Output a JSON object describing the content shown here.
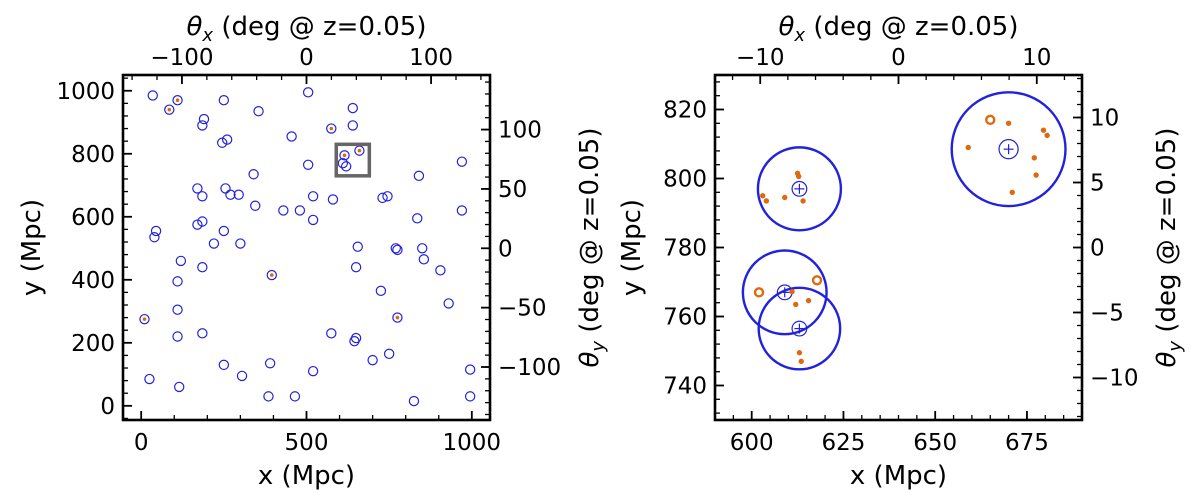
{
  "colors": {
    "halo": "#2222dd",
    "galaxy": "#dd6a10",
    "box": "#666666",
    "axis": "#000000"
  },
  "chart_data": [
    {
      "type": "scatter",
      "xlabel": "x (Mpc)",
      "ylabel": "y (Mpc)",
      "top_label": {
        "prefix": "θ",
        "sub": "x",
        "rest": " (deg @ z=0.05)"
      },
      "right_label": {
        "prefix": "θ",
        "sub": "y",
        "rest": " (deg @ z=0.05)"
      },
      "xlim": [
        -55,
        1055
      ],
      "ylim": [
        -45,
        1050
      ],
      "xticks": [
        0,
        500,
        1000
      ],
      "yticks": [
        0,
        200,
        400,
        600,
        800,
        1000
      ],
      "xtick_labels": [
        "0",
        "500",
        "1000"
      ],
      "ytick_labels": [
        "0",
        "200",
        "400",
        "600",
        "800",
        "1000"
      ],
      "top_ticks": [
        -100,
        0,
        100
      ],
      "top_tick_labels": [
        "−100",
        "0",
        "100"
      ],
      "right_ticks": [
        -100,
        -50,
        0,
        50,
        100
      ],
      "right_tick_labels": [
        "−100",
        "−50",
        "0",
        "50",
        "100"
      ],
      "deg_per_mpc": 0.2654,
      "deg_center": [
        500,
        500
      ],
      "zoom_box": {
        "x": [
          590,
          690
        ],
        "y": [
          730,
          830
        ]
      },
      "halos": [
        [
          35,
          985
        ],
        [
          110,
          970
        ],
        [
          85,
          940
        ],
        [
          45,
          555
        ],
        [
          40,
          535
        ],
        [
          190,
          910
        ],
        [
          185,
          890
        ],
        [
          250,
          970
        ],
        [
          260,
          845
        ],
        [
          245,
          835
        ],
        [
          355,
          935
        ],
        [
          455,
          855
        ],
        [
          505,
          995
        ],
        [
          575,
          880
        ],
        [
          640,
          945
        ],
        [
          640,
          890
        ],
        [
          660,
          810
        ],
        [
          615,
          795
        ],
        [
          610,
          770
        ],
        [
          620,
          760
        ],
        [
          505,
          765
        ],
        [
          170,
          690
        ],
        [
          185,
          665
        ],
        [
          255,
          690
        ],
        [
          270,
          670
        ],
        [
          295,
          670
        ],
        [
          340,
          735
        ],
        [
          345,
          635
        ],
        [
          430,
          620
        ],
        [
          480,
          620
        ],
        [
          520,
          665
        ],
        [
          580,
          655
        ],
        [
          520,
          590
        ],
        [
          185,
          585
        ],
        [
          170,
          575
        ],
        [
          250,
          555
        ],
        [
          220,
          515
        ],
        [
          300,
          515
        ],
        [
          120,
          460
        ],
        [
          185,
          440
        ],
        [
          110,
          395
        ],
        [
          395,
          415
        ],
        [
          655,
          505
        ],
        [
          650,
          440
        ],
        [
          770,
          500
        ],
        [
          775,
          495
        ],
        [
          745,
          665
        ],
        [
          730,
          660
        ],
        [
          840,
          730
        ],
        [
          835,
          595
        ],
        [
          850,
          500
        ],
        [
          855,
          465
        ],
        [
          905,
          430
        ],
        [
          970,
          775
        ],
        [
          970,
          620
        ],
        [
          930,
          325
        ],
        [
          725,
          365
        ],
        [
          10,
          275
        ],
        [
          110,
          305
        ],
        [
          775,
          280
        ],
        [
          110,
          220
        ],
        [
          185,
          230
        ],
        [
          575,
          230
        ],
        [
          650,
          215
        ],
        [
          645,
          205
        ],
        [
          750,
          165
        ],
        [
          700,
          145
        ],
        [
          250,
          130
        ],
        [
          390,
          135
        ],
        [
          520,
          110
        ],
        [
          995,
          115
        ],
        [
          25,
          85
        ],
        [
          115,
          60
        ],
        [
          305,
          95
        ],
        [
          385,
          30
        ],
        [
          465,
          30
        ],
        [
          825,
          15
        ],
        [
          995,
          30
        ]
      ],
      "halo_galaxies": [
        [
          10,
          275
        ],
        [
          110,
          970
        ],
        [
          85,
          940
        ],
        [
          395,
          415
        ],
        [
          775,
          280
        ],
        [
          575,
          880
        ],
        [
          660,
          810
        ],
        [
          615,
          795
        ]
      ]
    },
    {
      "type": "scatter",
      "xlabel": "x (Mpc)",
      "ylabel": "y (Mpc)",
      "top_label": {
        "prefix": "θ",
        "sub": "x",
        "rest": " (deg @ z=0.05)"
      },
      "right_label": {
        "prefix": "θ",
        "sub": "y",
        "rest": " (deg @ z=0.05)"
      },
      "xlim": [
        590,
        690
      ],
      "ylim": [
        730,
        830
      ],
      "xticks": [
        600,
        625,
        650,
        675
      ],
      "yticks": [
        740,
        760,
        780,
        800,
        820
      ],
      "xtick_labels": [
        "600",
        "625",
        "650",
        "675"
      ],
      "ytick_labels": [
        "740",
        "760",
        "780",
        "800",
        "820"
      ],
      "top_ticks": [
        -10,
        0,
        10
      ],
      "top_tick_labels": [
        "−10",
        "0",
        "10"
      ],
      "right_ticks": [
        -10,
        -5,
        0,
        5,
        10
      ],
      "right_tick_labels": [
        "−10",
        "−5",
        "0",
        "5",
        "10"
      ],
      "deg_per_mpc": 0.2654,
      "deg_center": [
        640,
        780
      ],
      "halos": [
        {
          "x": 613,
          "y": 797,
          "r": 11.3,
          "core": 2.0
        },
        {
          "x": 609,
          "y": 767,
          "r": 11.4,
          "core": 2.0
        },
        {
          "x": 613,
          "y": 756.5,
          "r": 11.1,
          "core": 2.0
        },
        {
          "x": 670,
          "y": 808.5,
          "r": 15.5,
          "core": 2.6
        }
      ],
      "galaxies": [
        {
          "x": 603,
          "y": 795,
          "s": 1.0
        },
        {
          "x": 604,
          "y": 793.5,
          "s": 1.0
        },
        {
          "x": 612.5,
          "y": 801.5,
          "s": 1.0
        },
        {
          "x": 612.8,
          "y": 800.6,
          "s": 1.0
        },
        {
          "x": 609,
          "y": 794.5,
          "s": 1.0
        },
        {
          "x": 614,
          "y": 793.5,
          "s": 1.0
        },
        {
          "x": 602,
          "y": 767,
          "s": 1.6
        },
        {
          "x": 617.8,
          "y": 770.5,
          "s": 1.6
        },
        {
          "x": 611,
          "y": 767.2,
          "s": 1.0
        },
        {
          "x": 615.5,
          "y": 764.6,
          "s": 1.0
        },
        {
          "x": 612,
          "y": 763.5,
          "s": 1.0
        },
        {
          "x": 613,
          "y": 749.5,
          "s": 1.0
        },
        {
          "x": 613.5,
          "y": 747,
          "s": 1.0
        },
        {
          "x": 659,
          "y": 809,
          "s": 1.0
        },
        {
          "x": 665,
          "y": 817,
          "s": 1.7
        },
        {
          "x": 670,
          "y": 816,
          "s": 1.0
        },
        {
          "x": 679.5,
          "y": 814,
          "s": 1.0
        },
        {
          "x": 680.5,
          "y": 812.5,
          "s": 1.0
        },
        {
          "x": 677,
          "y": 806,
          "s": 1.0
        },
        {
          "x": 677.5,
          "y": 801,
          "s": 1.0
        },
        {
          "x": 671,
          "y": 796,
          "s": 1.0
        }
      ]
    }
  ]
}
